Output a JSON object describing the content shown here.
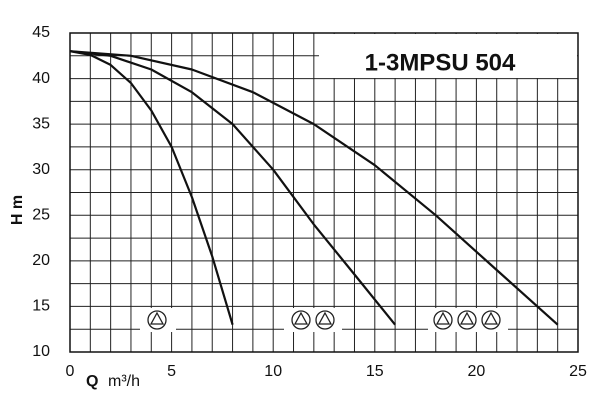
{
  "chart_data": {
    "type": "line",
    "title": "1-3MPSU 504",
    "x_label": "Q",
    "x_unit": "m³/h",
    "y_label": "H m",
    "xlim": [
      0,
      25
    ],
    "xticks": [
      0,
      5,
      10,
      15,
      20,
      25
    ],
    "ylim": [
      10,
      45
    ],
    "yticks": [
      10,
      15,
      20,
      25,
      30,
      35,
      40,
      45
    ],
    "xgrid": [
      1,
      2,
      3,
      4,
      6,
      7,
      8,
      9,
      11,
      12,
      13,
      14,
      16,
      17,
      18,
      19,
      21,
      22,
      23,
      24
    ],
    "ygrid": [
      12.5,
      17.5,
      22.5,
      27.5,
      32.5,
      37.5,
      42.5
    ],
    "grid": true,
    "series": [
      {
        "color": "#111111",
        "x": [
          0,
          1,
          2,
          3,
          4,
          5,
          6,
          7,
          8
        ],
        "values": [
          43,
          42.6,
          41.5,
          39.5,
          36.5,
          32.5,
          27,
          20.5,
          13
        ]
      },
      {
        "color": "#111111",
        "x": [
          0,
          2,
          4,
          6,
          8,
          10,
          12,
          14,
          16
        ],
        "values": [
          43,
          42.5,
          41,
          38.5,
          35,
          30,
          24,
          18.5,
          13
        ]
      },
      {
        "color": "#111111",
        "x": [
          0,
          3,
          6,
          9,
          12,
          15,
          18,
          21,
          24
        ],
        "values": [
          43,
          42.5,
          41,
          38.5,
          35,
          30.5,
          25,
          19,
          13
        ]
      }
    ]
  }
}
